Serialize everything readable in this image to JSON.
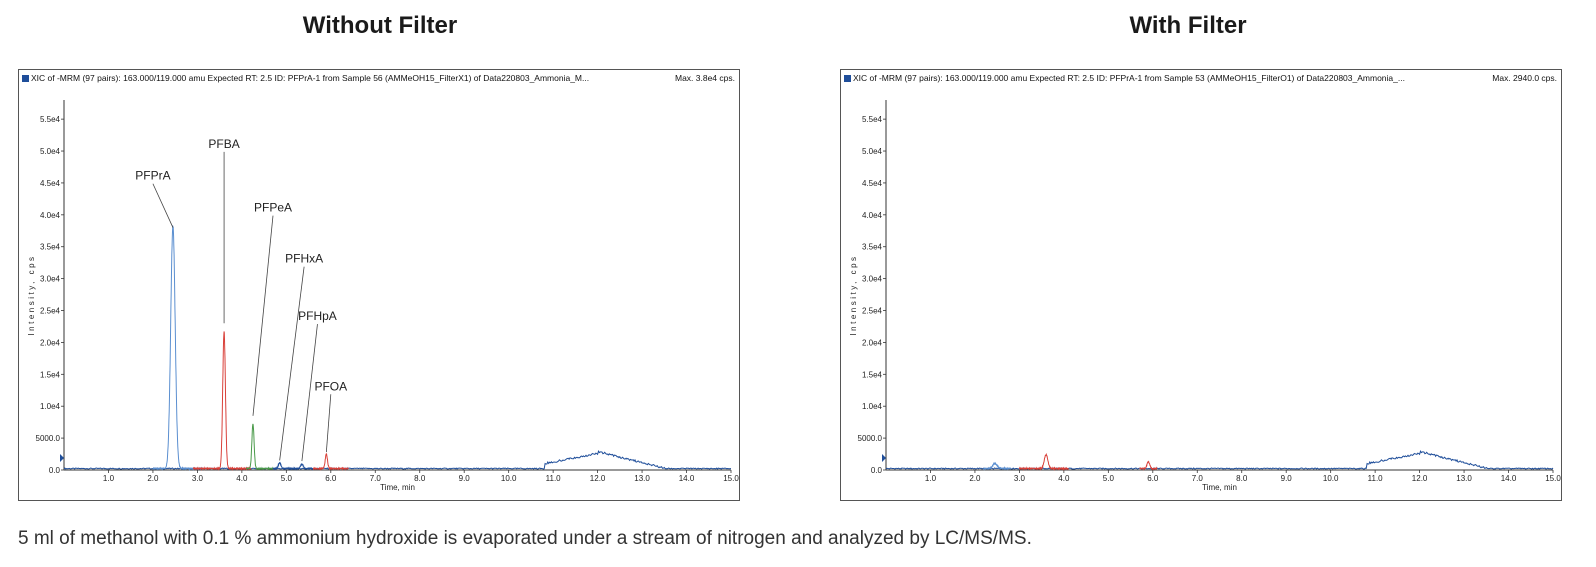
{
  "titles": {
    "left": "Without Filter",
    "right": "With Filter"
  },
  "caption": "5 ml of methanol with 0.1 % ammonium hydroxide is evaporated under a stream of nitrogen and analyzed by LC/MS/MS.",
  "chart_data": [
    {
      "type": "line",
      "title": "Without Filter",
      "header": "XIC of -MRM (97 pairs): 163.000/119.000 amu Expected RT: 2.5 ID: PFPrA-1 from Sample 56 (AMMeOH15_FilterX1) of Data220803_Ammonia_M...",
      "max_label": "Max. 3.8e4 cps.",
      "xlabel": "Time, min",
      "ylabel": "Intensity, cps",
      "xlim": [
        0,
        15
      ],
      "ylim": [
        0,
        58000
      ],
      "x_ticks": [
        "1.0",
        "2.0",
        "3.0",
        "4.0",
        "5.0",
        "6.0",
        "7.0",
        "8.0",
        "9.0",
        "10.0",
        "11.0",
        "12.0",
        "13.0",
        "14.0",
        "15.0"
      ],
      "y_ticks": [
        "0.0",
        "5000.0",
        "1.0e4",
        "1.5e4",
        "2.0e4",
        "2.5e4",
        "3.0e4",
        "3.5e4",
        "4.0e4",
        "4.5e4",
        "5.0e4",
        "5.5e4"
      ],
      "colors": {
        "baseline": "#1f4e9a",
        "blue": "#5b8fd0",
        "red": "#d9413a",
        "green": "#4a9a4a"
      },
      "series": [
        {
          "name": "baseline",
          "color": "#1f4e9a",
          "hump": {
            "start": 10.8,
            "peak": 12.0,
            "end": 13.5,
            "height": 2600,
            "step": 1000
          }
        },
        {
          "name": "PFPrA",
          "color": "#5b8fd0",
          "segment": [
            2.0,
            3.1
          ],
          "rt": 2.45,
          "height": 38000,
          "width": 0.05
        },
        {
          "name": "PFBA",
          "color": "#d9413a",
          "segment": [
            2.9,
            4.2
          ],
          "rt": 3.6,
          "height": 21500,
          "width": 0.03
        },
        {
          "name": "PFPeA",
          "color": "#4a9a4a",
          "segment": [
            4.1,
            4.7
          ],
          "rt": 4.25,
          "height": 7000,
          "width": 0.025
        },
        {
          "name": "PFHxA",
          "color": "#1f4e9a",
          "segment": [
            4.7,
            5.2
          ],
          "rt": 4.85,
          "height": 900,
          "width": 0.03
        },
        {
          "name": "PFHpA",
          "color": "#1f4e9a",
          "segment": [
            5.2,
            5.6
          ],
          "rt": 5.35,
          "height": 700,
          "width": 0.03
        },
        {
          "name": "PFOA",
          "color": "#d9413a",
          "segment": [
            5.6,
            6.4
          ],
          "rt": 5.9,
          "height": 2300,
          "width": 0.025
        }
      ],
      "annotations": [
        {
          "text": "PFPrA",
          "x": 2.45,
          "y": 38000,
          "label_x": 2.0,
          "label_y": 45500
        },
        {
          "text": "PFBA",
          "x": 3.6,
          "y": 23000,
          "label_x": 3.6,
          "label_y": 50500
        },
        {
          "text": "PFPeA",
          "x": 4.25,
          "y": 8500,
          "label_x": 4.7,
          "label_y": 40500
        },
        {
          "text": "PFHxA",
          "x": 4.85,
          "y": 1500,
          "label_x": 5.4,
          "label_y": 32500
        },
        {
          "text": "PFHpA",
          "x": 5.35,
          "y": 1400,
          "label_x": 5.7,
          "label_y": 23500
        },
        {
          "text": "PFOA",
          "x": 5.9,
          "y": 2800,
          "label_x": 6.0,
          "label_y": 12500
        }
      ]
    },
    {
      "type": "line",
      "title": "With Filter",
      "header": "XIC of -MRM (97 pairs): 163.000/119.000 amu Expected RT: 2.5 ID: PFPrA-1 from Sample 53 (AMMeOH15_FilterO1) of Data220803_Ammonia_...",
      "max_label": "Max. 2940.0 cps.",
      "xlabel": "Time, min",
      "ylabel": "Intensity, cps",
      "xlim": [
        0,
        15
      ],
      "ylim": [
        0,
        58000
      ],
      "x_ticks": [
        "1.0",
        "2.0",
        "3.0",
        "4.0",
        "5.0",
        "6.0",
        "7.0",
        "8.0",
        "9.0",
        "10.0",
        "11.0",
        "12.0",
        "13.0",
        "14.0",
        "15.0"
      ],
      "y_ticks": [
        "0.0",
        "5000.0",
        "1.0e4",
        "1.5e4",
        "2.0e4",
        "2.5e4",
        "3.0e4",
        "3.5e4",
        "4.0e4",
        "4.5e4",
        "5.0e4",
        "5.5e4"
      ],
      "colors": {
        "baseline": "#1f4e9a",
        "blue": "#5b8fd0",
        "red": "#d9413a",
        "green": "#4a9a4a"
      },
      "series": [
        {
          "name": "baseline",
          "color": "#1f4e9a",
          "hump": {
            "start": 10.8,
            "peak": 12.0,
            "end": 13.5,
            "height": 2600,
            "step": 1000
          }
        },
        {
          "name": "blue-peak",
          "color": "#5b8fd0",
          "segment": [
            2.2,
            2.8
          ],
          "rt": 2.45,
          "height": 800,
          "width": 0.05
        },
        {
          "name": "red-peak",
          "color": "#d9413a",
          "segment": [
            3.0,
            4.1
          ],
          "rt": 3.6,
          "height": 2200,
          "width": 0.04
        },
        {
          "name": "red-peak-2",
          "color": "#d9413a",
          "segment": [
            5.7,
            6.1
          ],
          "rt": 5.9,
          "height": 1100,
          "width": 0.03
        }
      ],
      "annotations": []
    }
  ]
}
